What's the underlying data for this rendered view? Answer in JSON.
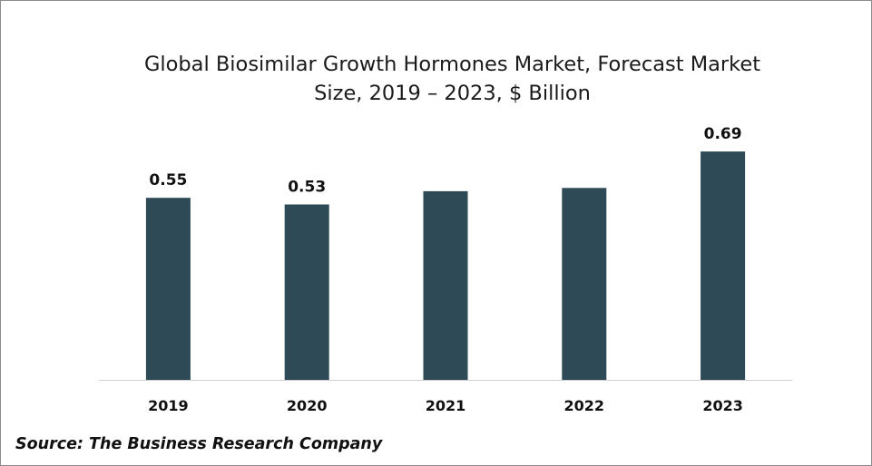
{
  "chart_data": {
    "type": "bar",
    "title": "Global Biosimilar Growth Hormones Market, Forecast Market Size, 2019 – 2023, $ Billion",
    "categories": [
      "2019",
      "2020",
      "2021",
      "2022",
      "2023"
    ],
    "values": [
      0.55,
      0.53,
      0.57,
      0.58,
      0.69
    ],
    "data_labels": [
      "0.55",
      "0.53",
      "",
      "",
      "0.69"
    ],
    "ylim": [
      0,
      0.7397
    ],
    "grid": false,
    "legend": "none",
    "bar_color": "#2e4a56"
  },
  "source": "Source: The Business Research Company"
}
